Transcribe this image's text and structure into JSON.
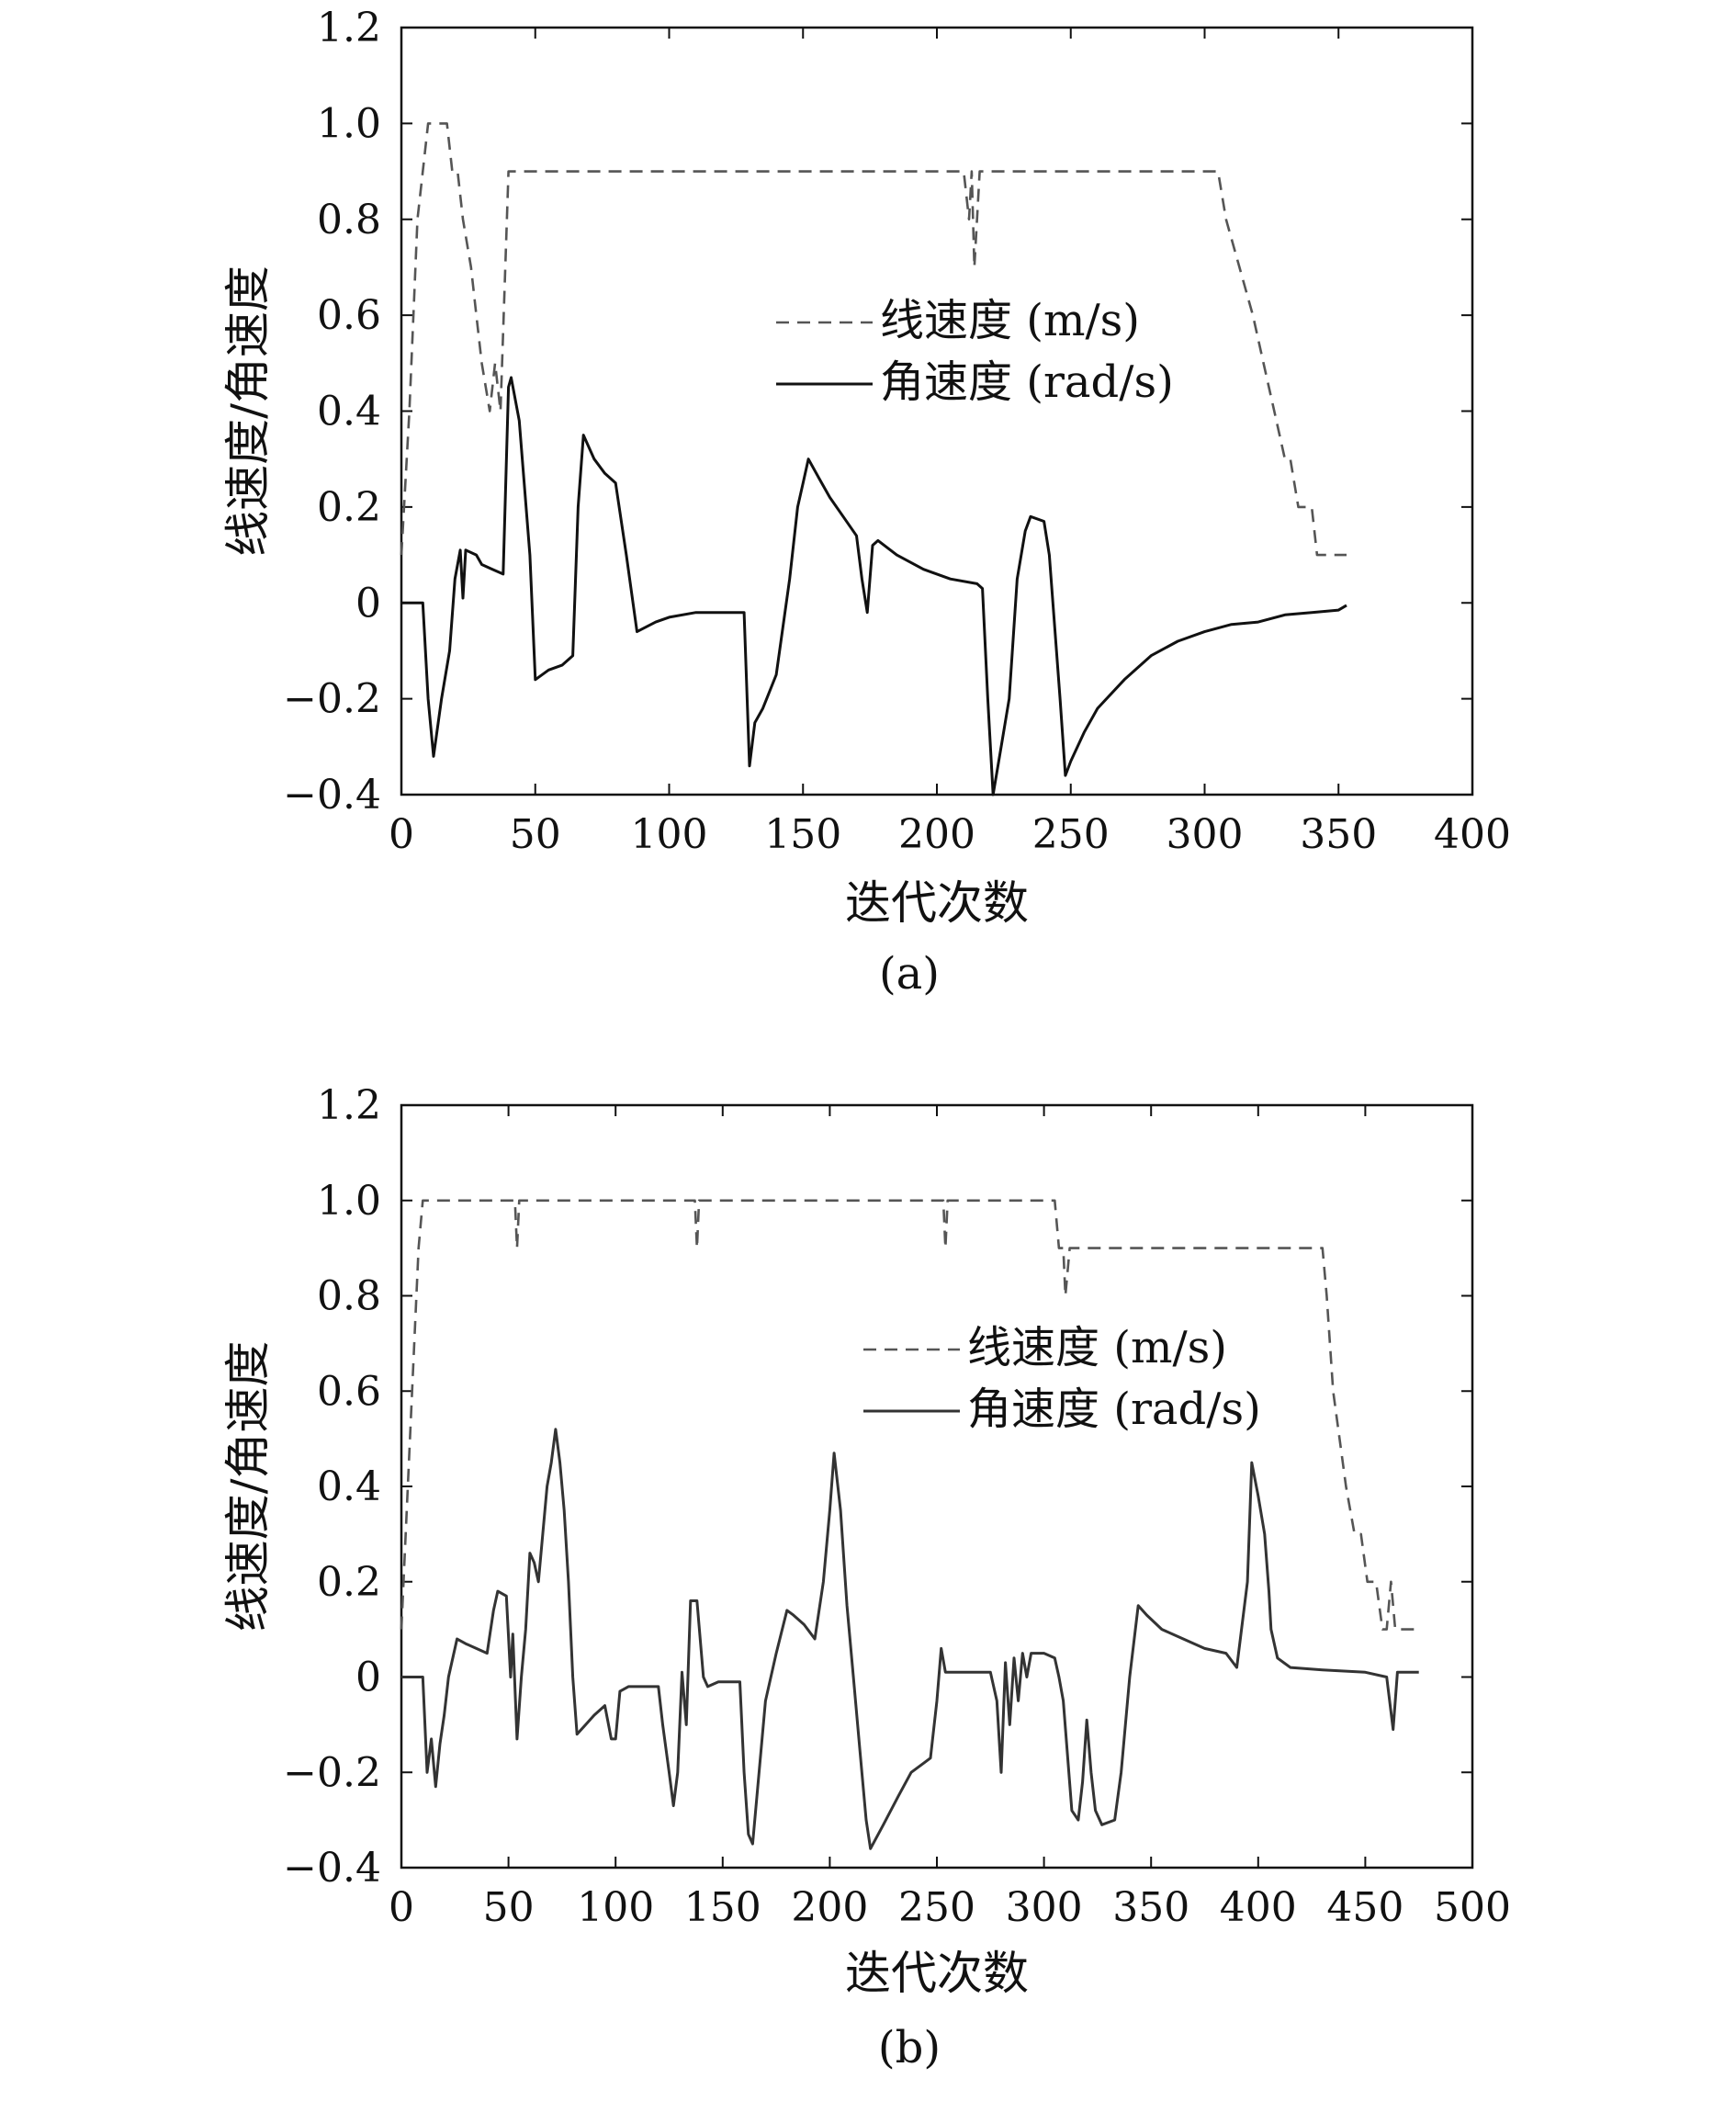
{
  "chart_data": [
    {
      "type": "line",
      "panel_label": "(a)",
      "xlabel": "迭代次数",
      "ylabel": "线速度/角速度",
      "xlim": [
        0,
        400
      ],
      "ylim": [
        -0.4,
        1.2
      ],
      "xticks": [
        "0",
        "50",
        "100",
        "150",
        "200",
        "250",
        "300",
        "350",
        "400"
      ],
      "yticks": [
        "−0.4",
        "−0.2",
        "0",
        "0.2",
        "0.4",
        "0.6",
        "0.8",
        "1.0",
        "1.2"
      ],
      "grid": false,
      "legend_position": "center-right",
      "series": [
        {
          "name": "线速度 (m/s)",
          "style": "dashed",
          "color": "#555555",
          "points": [
            [
              0,
              0.1
            ],
            [
              3,
              0.4
            ],
            [
              6,
              0.8
            ],
            [
              10,
              1.0
            ],
            [
              17,
              1.0
            ],
            [
              19,
              0.9
            ],
            [
              21,
              0.9
            ],
            [
              23,
              0.8
            ],
            [
              26,
              0.7
            ],
            [
              28,
              0.6
            ],
            [
              30,
              0.5
            ],
            [
              33,
              0.4
            ],
            [
              35,
              0.5
            ],
            [
              37,
              0.4
            ],
            [
              40,
              0.9
            ],
            [
              210,
              0.9
            ],
            [
              212,
              0.8
            ],
            [
              213,
              0.9
            ],
            [
              214,
              0.7
            ],
            [
              216,
              0.9
            ],
            [
              305,
              0.9
            ],
            [
              308,
              0.8
            ],
            [
              313,
              0.7
            ],
            [
              318,
              0.6
            ],
            [
              322,
              0.5
            ],
            [
              326,
              0.4
            ],
            [
              330,
              0.3
            ],
            [
              332,
              0.3
            ],
            [
              335,
              0.2
            ],
            [
              340,
              0.2
            ],
            [
              342,
              0.1
            ],
            [
              353,
              0.1
            ]
          ]
        },
        {
          "name": "角速度 (rad/s)",
          "style": "solid",
          "color": "#111111",
          "points": [
            [
              0,
              0
            ],
            [
              8,
              0
            ],
            [
              10,
              -0.2
            ],
            [
              12,
              -0.32
            ],
            [
              15,
              -0.2
            ],
            [
              18,
              -0.1
            ],
            [
              20,
              0.05
            ],
            [
              22,
              0.11
            ],
            [
              23,
              0.01
            ],
            [
              24,
              0.11
            ],
            [
              28,
              0.1
            ],
            [
              30,
              0.08
            ],
            [
              34,
              0.07
            ],
            [
              38,
              0.06
            ],
            [
              40,
              0.45
            ],
            [
              41,
              0.47
            ],
            [
              44,
              0.38
            ],
            [
              48,
              0.1
            ],
            [
              50,
              -0.16
            ],
            [
              55,
              -0.14
            ],
            [
              60,
              -0.13
            ],
            [
              64,
              -0.11
            ],
            [
              66,
              0.2
            ],
            [
              68,
              0.35
            ],
            [
              72,
              0.3
            ],
            [
              76,
              0.27
            ],
            [
              80,
              0.25
            ],
            [
              84,
              0.1
            ],
            [
              88,
              -0.06
            ],
            [
              95,
              -0.04
            ],
            [
              100,
              -0.03
            ],
            [
              110,
              -0.02
            ],
            [
              128,
              -0.02
            ],
            [
              130,
              -0.34
            ],
            [
              132,
              -0.25
            ],
            [
              135,
              -0.22
            ],
            [
              140,
              -0.15
            ],
            [
              145,
              0.05
            ],
            [
              148,
              0.2
            ],
            [
              150,
              0.25
            ],
            [
              152,
              0.3
            ],
            [
              156,
              0.26
            ],
            [
              160,
              0.22
            ],
            [
              165,
              0.18
            ],
            [
              170,
              0.14
            ],
            [
              172,
              0.05
            ],
            [
              174,
              -0.02
            ],
            [
              176,
              0.12
            ],
            [
              178,
              0.13
            ],
            [
              185,
              0.1
            ],
            [
              195,
              0.07
            ],
            [
              205,
              0.05
            ],
            [
              215,
              0.04
            ],
            [
              217,
              0.03
            ],
            [
              219,
              -0.2
            ],
            [
              221,
              -0.4
            ],
            [
              224,
              -0.3
            ],
            [
              227,
              -0.2
            ],
            [
              230,
              0.05
            ],
            [
              233,
              0.15
            ],
            [
              235,
              0.18
            ],
            [
              240,
              0.17
            ],
            [
              242,
              0.1
            ],
            [
              246,
              -0.2
            ],
            [
              248,
              -0.36
            ],
            [
              250,
              -0.33
            ],
            [
              255,
              -0.27
            ],
            [
              260,
              -0.22
            ],
            [
              270,
              -0.16
            ],
            [
              280,
              -0.11
            ],
            [
              290,
              -0.08
            ],
            [
              300,
              -0.06
            ],
            [
              310,
              -0.045
            ],
            [
              320,
              -0.04
            ],
            [
              330,
              -0.025
            ],
            [
              340,
              -0.02
            ],
            [
              350,
              -0.015
            ],
            [
              353,
              -0.005
            ]
          ]
        }
      ]
    },
    {
      "type": "line",
      "panel_label": "(b)",
      "xlabel": "迭代次数",
      "ylabel": "线速度/角速度",
      "xlim": [
        0,
        500
      ],
      "ylim": [
        -0.4,
        1.2
      ],
      "xticks": [
        "0",
        "50",
        "100",
        "150",
        "200",
        "250",
        "300",
        "350",
        "400",
        "450",
        "500"
      ],
      "yticks": [
        "−0.4",
        "−0.2",
        "0",
        "0.2",
        "0.4",
        "0.6",
        "0.8",
        "1.0",
        "1.2"
      ],
      "grid": false,
      "legend_position": "center-right",
      "series": [
        {
          "name": "线速度 (m/s)",
          "style": "dashed",
          "color": "#555555",
          "points": [
            [
              0,
              0.1
            ],
            [
              3,
              0.4
            ],
            [
              6,
              0.7
            ],
            [
              8,
              0.9
            ],
            [
              10,
              1.0
            ],
            [
              53,
              1.0
            ],
            [
              54,
              0.9
            ],
            [
              55,
              1.0
            ],
            [
              137,
              1.0
            ],
            [
              138,
              0.9
            ],
            [
              139,
              1.0
            ],
            [
              253,
              1.0
            ],
            [
              254,
              0.9
            ],
            [
              255,
              1.0
            ],
            [
              305,
              1.0
            ],
            [
              307,
              0.9
            ],
            [
              309,
              0.9
            ],
            [
              310,
              0.8
            ],
            [
              312,
              0.9
            ],
            [
              430,
              0.9
            ],
            [
              432,
              0.8
            ],
            [
              435,
              0.6
            ],
            [
              438,
              0.5
            ],
            [
              441,
              0.4
            ],
            [
              445,
              0.3
            ],
            [
              448,
              0.3
            ],
            [
              451,
              0.2
            ],
            [
              455,
              0.2
            ],
            [
              458,
              0.1
            ],
            [
              460,
              0.1
            ],
            [
              462,
              0.2
            ],
            [
              464,
              0.1
            ],
            [
              475,
              0.1
            ]
          ]
        },
        {
          "name": "角速度 (rad/s)",
          "style": "solid",
          "color": "#333333",
          "points": [
            [
              0,
              0
            ],
            [
              10,
              0
            ],
            [
              12,
              -0.2
            ],
            [
              14,
              -0.13
            ],
            [
              16,
              -0.23
            ],
            [
              18,
              -0.14
            ],
            [
              20,
              -0.08
            ],
            [
              22,
              0.0
            ],
            [
              26,
              0.08
            ],
            [
              30,
              0.07
            ],
            [
              35,
              0.06
            ],
            [
              40,
              0.05
            ],
            [
              43,
              0.14
            ],
            [
              45,
              0.18
            ],
            [
              49,
              0.17
            ],
            [
              51,
              0.0
            ],
            [
              52,
              0.09
            ],
            [
              54,
              -0.13
            ],
            [
              56,
              0.0
            ],
            [
              58,
              0.1
            ],
            [
              60,
              0.26
            ],
            [
              62,
              0.24
            ],
            [
              64,
              0.2
            ],
            [
              66,
              0.3
            ],
            [
              68,
              0.4
            ],
            [
              70,
              0.45
            ],
            [
              72,
              0.52
            ],
            [
              74,
              0.45
            ],
            [
              76,
              0.35
            ],
            [
              78,
              0.2
            ],
            [
              80,
              0.0
            ],
            [
              82,
              -0.12
            ],
            [
              86,
              -0.1
            ],
            [
              90,
              -0.08
            ],
            [
              95,
              -0.06
            ],
            [
              98,
              -0.13
            ],
            [
              100,
              -0.13
            ],
            [
              102,
              -0.03
            ],
            [
              106,
              -0.02
            ],
            [
              120,
              -0.02
            ],
            [
              122,
              -0.1
            ],
            [
              125,
              -0.2
            ],
            [
              127,
              -0.27
            ],
            [
              129,
              -0.2
            ],
            [
              131,
              0.01
            ],
            [
              133,
              -0.1
            ],
            [
              135,
              0.16
            ],
            [
              138,
              0.16
            ],
            [
              141,
              0.0
            ],
            [
              143,
              -0.02
            ],
            [
              148,
              -0.01
            ],
            [
              158,
              -0.01
            ],
            [
              160,
              -0.2
            ],
            [
              162,
              -0.33
            ],
            [
              164,
              -0.35
            ],
            [
              167,
              -0.2
            ],
            [
              170,
              -0.05
            ],
            [
              175,
              0.05
            ],
            [
              180,
              0.14
            ],
            [
              183,
              0.13
            ],
            [
              188,
              0.11
            ],
            [
              193,
              0.08
            ],
            [
              197,
              0.2
            ],
            [
              200,
              0.35
            ],
            [
              202,
              0.47
            ],
            [
              205,
              0.35
            ],
            [
              208,
              0.15
            ],
            [
              211,
              0.0
            ],
            [
              214,
              -0.15
            ],
            [
              217,
              -0.3
            ],
            [
              219,
              -0.36
            ],
            [
              225,
              -0.31
            ],
            [
              232,
              -0.25
            ],
            [
              238,
              -0.2
            ],
            [
              244,
              -0.18
            ],
            [
              247,
              -0.17
            ],
            [
              250,
              -0.05
            ],
            [
              252,
              0.06
            ],
            [
              254,
              0.01
            ],
            [
              260,
              0.01
            ],
            [
              275,
              0.01
            ],
            [
              278,
              -0.05
            ],
            [
              280,
              -0.2
            ],
            [
              282,
              0.03
            ],
            [
              284,
              -0.1
            ],
            [
              286,
              0.04
            ],
            [
              288,
              -0.05
            ],
            [
              290,
              0.05
            ],
            [
              292,
              0.0
            ],
            [
              294,
              0.05
            ],
            [
              300,
              0.05
            ],
            [
              305,
              0.04
            ],
            [
              307,
              0.0
            ],
            [
              309,
              -0.05
            ],
            [
              313,
              -0.28
            ],
            [
              316,
              -0.3
            ],
            [
              318,
              -0.22
            ],
            [
              320,
              -0.09
            ],
            [
              322,
              -0.2
            ],
            [
              324,
              -0.28
            ],
            [
              327,
              -0.31
            ],
            [
              333,
              -0.3
            ],
            [
              336,
              -0.2
            ],
            [
              340,
              0.0
            ],
            [
              344,
              0.15
            ],
            [
              348,
              0.13
            ],
            [
              355,
              0.1
            ],
            [
              365,
              0.08
            ],
            [
              375,
              0.06
            ],
            [
              385,
              0.05
            ],
            [
              390,
              0.02
            ],
            [
              395,
              0.2
            ],
            [
              397,
              0.45
            ],
            [
              400,
              0.38
            ],
            [
              403,
              0.3
            ],
            [
              405,
              0.18
            ],
            [
              406,
              0.1
            ],
            [
              409,
              0.04
            ],
            [
              415,
              0.02
            ],
            [
              430,
              0.015
            ],
            [
              450,
              0.01
            ],
            [
              460,
              0.0
            ],
            [
              463,
              -0.11
            ],
            [
              465,
              0.01
            ],
            [
              475,
              0.01
            ]
          ]
        }
      ]
    }
  ]
}
